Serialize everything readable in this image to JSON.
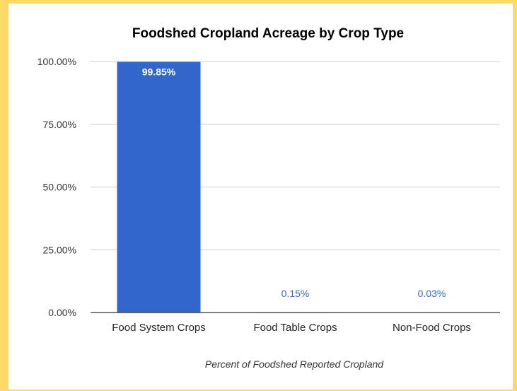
{
  "colors": {
    "background": "#ffd966",
    "panel": "#ffffff",
    "bar": "#3366cc",
    "label_inside": "#ffffff",
    "label_outside": "#3366cc",
    "gridline": "#cccccc",
    "axis": "#333333"
  },
  "chart_data": {
    "type": "bar",
    "title": "Foodshed Cropland Acreage by Crop Type",
    "xlabel": "Percent of Foodshed Reported Cropland",
    "ylabel": "",
    "categories": [
      "Food System Crops",
      "Food Table Crops",
      "Non-Food Crops"
    ],
    "values": [
      99.85,
      0.15,
      0.03
    ],
    "data_labels": [
      "99.85%",
      "0.15%",
      "0.03%"
    ],
    "ylim": [
      0,
      100
    ],
    "yticks": [
      0,
      25,
      50,
      75,
      100
    ],
    "ytick_labels": [
      "0.00%",
      "25.00%",
      "50.00%",
      "75.00%",
      "100.00%"
    ],
    "grid": true,
    "legend": "none"
  }
}
